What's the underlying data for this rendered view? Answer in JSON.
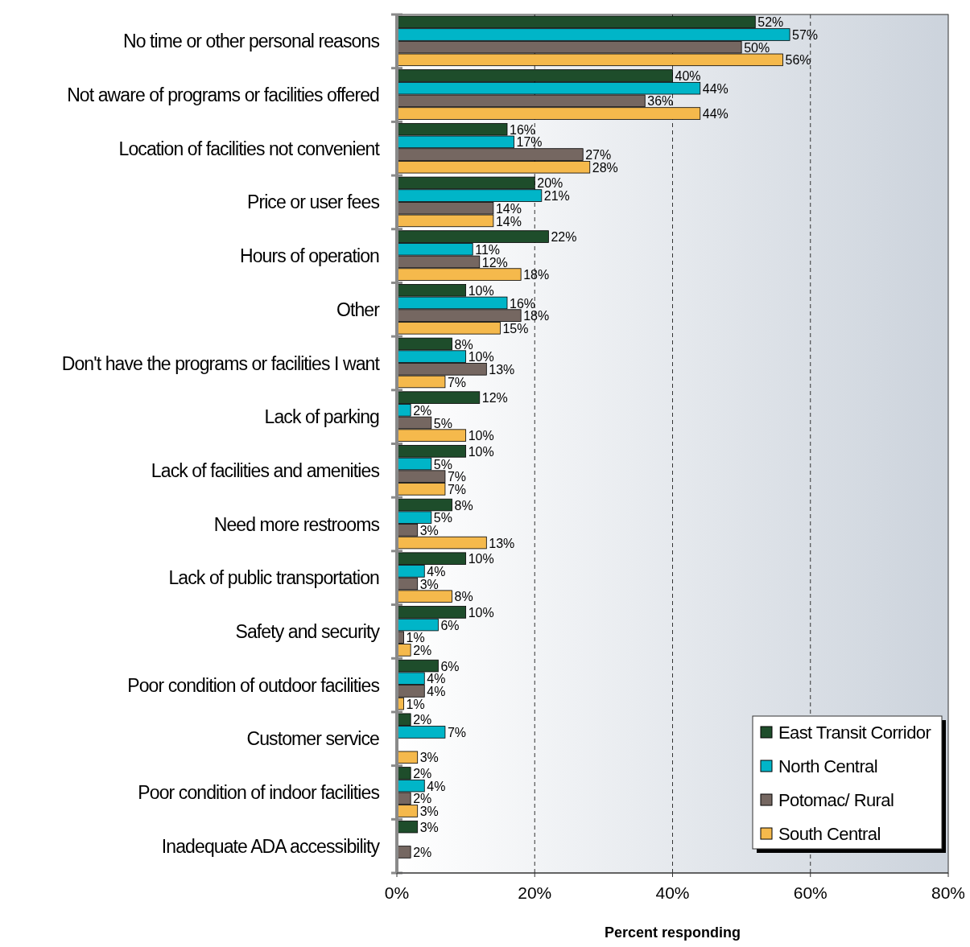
{
  "chart_data": {
    "type": "bar",
    "orientation": "horizontal",
    "xlabel": "Percent responding",
    "categories": [
      "No time or other personal reasons",
      "Not aware of programs or facilities offered",
      "Location of facilities not convenient",
      "Price or user fees",
      "Hours of operation",
      "Other",
      "Don't have the programs or facilities I want",
      "Lack of parking",
      "Lack of facilities and amenities",
      "Need more restrooms",
      "Lack of public transportation",
      "Safety and security",
      "Poor condition of outdoor facilities",
      "Customer service",
      "Poor condition of indoor facilities",
      "Inadequate ADA accessibility"
    ],
    "series": [
      {
        "name": "East Transit Corridor",
        "color": "#1e4d2b",
        "values": [
          52,
          40,
          16,
          20,
          22,
          10,
          8,
          12,
          10,
          8,
          10,
          10,
          6,
          2,
          2,
          3
        ],
        "value_labels": [
          "52%",
          "40%",
          "16%",
          "20%",
          "22%",
          "10%",
          "8%",
          "12%",
          "10%",
          "8%",
          "10%",
          "10%",
          "6%",
          "2%",
          "2%",
          "3%"
        ]
      },
      {
        "name": "North Central",
        "color": "#00b5c8",
        "values": [
          57,
          44,
          17,
          21,
          11,
          16,
          10,
          2,
          5,
          5,
          4,
          6,
          4,
          7,
          4,
          null
        ],
        "value_labels": [
          "57%",
          "44%",
          "17%",
          "21%",
          "11%",
          "16%",
          "10%",
          "2%",
          "5%",
          "5%",
          "4%",
          "6%",
          "4%",
          "7%",
          "4%",
          null
        ]
      },
      {
        "name": "Potomac/ Rural",
        "color": "#756761",
        "values": [
          50,
          36,
          27,
          14,
          12,
          18,
          13,
          5,
          7,
          3,
          3,
          1,
          4,
          null,
          2,
          2
        ],
        "value_labels": [
          "50%",
          "36%",
          "27%",
          "14%",
          "12%",
          "18%",
          "13%",
          "5%",
          "7%",
          "3%",
          "3%",
          "1%",
          "4%",
          null,
          "2%",
          "2%"
        ]
      },
      {
        "name": "South Central",
        "color": "#f5b94c",
        "values": [
          56,
          44,
          28,
          14,
          18,
          15,
          7,
          10,
          7,
          13,
          8,
          2,
          1,
          3,
          3,
          null
        ],
        "value_labels": [
          "56%",
          "44%",
          "28%",
          "14%",
          "18%",
          "15%",
          "7%",
          "10%",
          "7%",
          "13%",
          "8%",
          "2%",
          "1%",
          "3%",
          "3%",
          null
        ]
      }
    ],
    "xlim": [
      0,
      80
    ],
    "xticks": [
      {
        "value": 0,
        "label": "0%"
      },
      {
        "value": 20,
        "label": "20%"
      },
      {
        "value": 40,
        "label": "40%"
      },
      {
        "value": 60,
        "label": "60%"
      },
      {
        "value": 80,
        "label": "80%"
      }
    ],
    "grid": "x",
    "line_style": "dashed",
    "legend": "bottom right"
  }
}
